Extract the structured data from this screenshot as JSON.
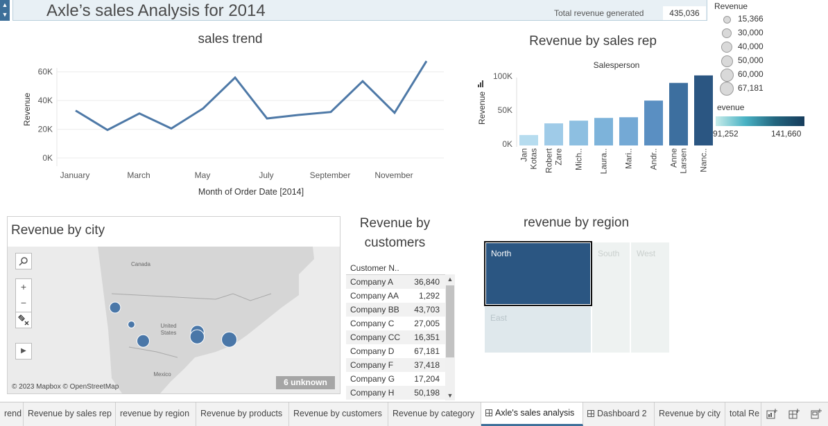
{
  "header": {
    "title": "Axle’s sales Analysis for 2014",
    "total_label": "Total revenue generated",
    "total_value": "435,036"
  },
  "sales_trend": {
    "title": "sales trend",
    "ylabel": "Revenue",
    "xlabel": "Month of Order Date [2014]",
    "y_ticks": [
      "0K",
      "20K",
      "40K",
      "60K"
    ],
    "x_ticks": [
      "January",
      "March",
      "May",
      "July",
      "September",
      "November"
    ]
  },
  "rep_chart": {
    "title": "Revenue by sales rep",
    "subtitle": "Salesperson",
    "ylabel": "Revenue",
    "y_ticks": [
      "0K",
      "50K",
      "100K"
    ]
  },
  "legend": {
    "size_title": "Revenue",
    "size_values": [
      "15,366",
      "30,000",
      "40,000",
      "50,000",
      "60,000",
      "67,181"
    ],
    "color_title": "evenue",
    "color_min": "91,252",
    "color_max": "141,660"
  },
  "map": {
    "title": "Revenue by city",
    "labels": {
      "canada": "Canada",
      "us_line1": "United",
      "us_line2": "States",
      "mexico": "Mexico"
    },
    "credit": "© 2023 Mapbox © OpenStreetMap",
    "unknown": "6 unknown",
    "zoom_in": "+",
    "zoom_out": "−",
    "play": "▶",
    "search_icon": "search-icon",
    "pin_icon": "pin-icon"
  },
  "customers": {
    "title_line1": "Revenue by",
    "title_line2": "customers",
    "column_header": "Customer N..",
    "rows": [
      {
        "name": "Company A",
        "value": "36,840"
      },
      {
        "name": "Company AA",
        "value": "1,292"
      },
      {
        "name": "Company BB",
        "value": "43,703"
      },
      {
        "name": "Company C",
        "value": "27,005"
      },
      {
        "name": "Company CC",
        "value": "16,351"
      },
      {
        "name": "Company D",
        "value": "67,181"
      },
      {
        "name": "Company F",
        "value": "37,418"
      },
      {
        "name": "Company G",
        "value": "17,204"
      },
      {
        "name": "Company H",
        "value": "50,198"
      }
    ]
  },
  "region": {
    "title": "revenue by region",
    "north": "North",
    "south": "South",
    "west": "West",
    "east": "East"
  },
  "tabs": [
    {
      "label": "rend",
      "active": false
    },
    {
      "label": "Revenue by sales rep",
      "active": false
    },
    {
      "label": "revenue by region",
      "active": false
    },
    {
      "label": "Revenue by products",
      "active": false
    },
    {
      "label": "Revenue by customers",
      "active": false
    },
    {
      "label": "Revenue by category",
      "active": false
    },
    {
      "label": "Axle's sales analysis",
      "active": true
    },
    {
      "label": "Dashboard 2",
      "active": false
    },
    {
      "label": "Revenue by city",
      "active": false
    },
    {
      "label": "total Re",
      "active": false
    }
  ],
  "colors": {
    "line": "#4e79a7",
    "north": "#2b5682",
    "north_border": "#111111",
    "east": "#dfe8ec",
    "south_west": "#eef2f1",
    "map_marker": "#4a77a8"
  },
  "chart_data": [
    {
      "type": "line",
      "title": "sales trend",
      "xlabel": "Month of Order Date [2014]",
      "ylabel": "Revenue",
      "x": [
        "January",
        "February",
        "March",
        "April",
        "May",
        "June",
        "July",
        "August",
        "September",
        "October",
        "November",
        "December"
      ],
      "values": [
        33000,
        19500,
        31000,
        20500,
        34500,
        56000,
        27500,
        30000,
        32000,
        53500,
        31500,
        67500
      ],
      "ylim": [
        0,
        70000
      ]
    },
    {
      "type": "bar",
      "title": "Revenue by sales rep",
      "xlabel": "Salesperson",
      "ylabel": "Revenue",
      "categories": [
        "Jan Kotas",
        "Robert Zare",
        "Mich..",
        "Laura..",
        "Mari..",
        "Andr..",
        "Anne Larsen",
        "Nanc.."
      ],
      "values": [
        15366,
        32500,
        36500,
        40500,
        41500,
        66000,
        92000,
        103000
      ],
      "colors": [
        "#b6dcef",
        "#9fcbe8",
        "#8dbfe1",
        "#7db3da",
        "#74a9d5",
        "#5a8fc2",
        "#3d6f9f",
        "#2b5682"
      ],
      "ylim": [
        0,
        110000
      ]
    },
    {
      "type": "scatter",
      "title": "Revenue by city",
      "points": [
        {
          "lon": -122.4,
          "lat": 47.6,
          "revenue": 40000
        },
        {
          "lon": -115.5,
          "lat": 44.0,
          "revenue": 15366
        },
        {
          "lon": -110.5,
          "lat": 40.5,
          "revenue": 50000
        },
        {
          "lon": -87.5,
          "lat": 42.4,
          "revenue": 55000
        },
        {
          "lon": -87.6,
          "lat": 41.4,
          "revenue": 60000
        },
        {
          "lon": -74.0,
          "lat": 40.8,
          "revenue": 67181
        }
      ]
    }
  ]
}
